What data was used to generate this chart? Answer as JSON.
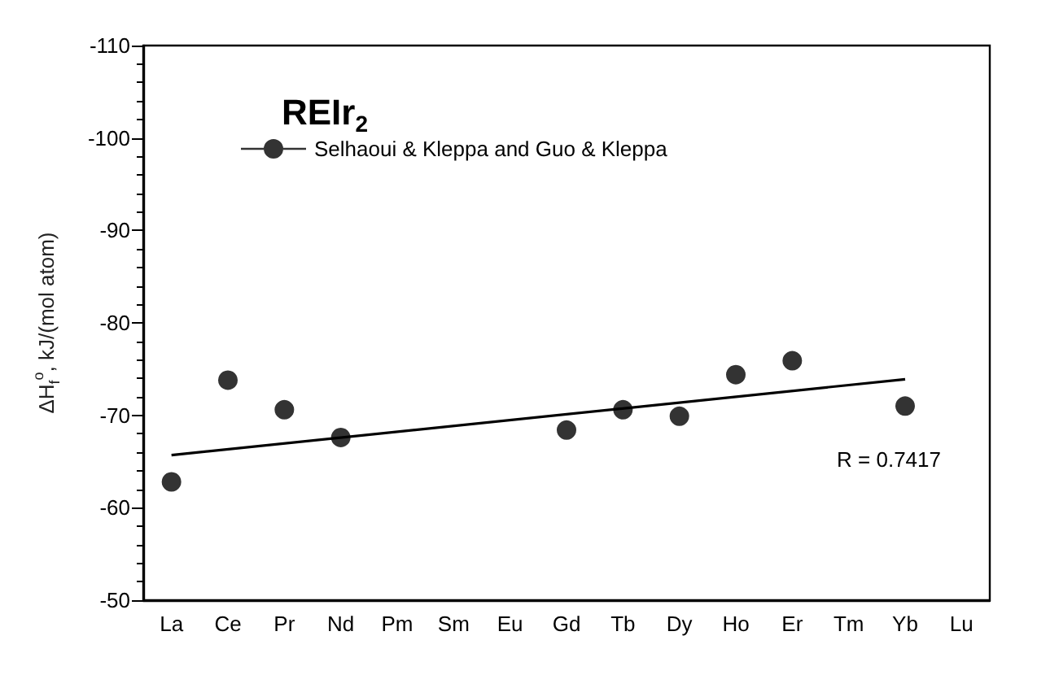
{
  "chart_data": {
    "type": "scatter",
    "title": "REIr$_{2}$",
    "ylabel": "ΔH$_{f}$$^{o}$, kJ/(mol atom)",
    "categories": [
      "La",
      "Ce",
      "Pr",
      "Nd",
      "Pm",
      "Sm",
      "Eu",
      "Gd",
      "Tb",
      "Dy",
      "Ho",
      "Er",
      "Tm",
      "Yb",
      "Lu"
    ],
    "series": [
      {
        "name": "Selhaoui & Kleppa and Guo & Kleppa",
        "color": "#000000",
        "values": [
          -62.8,
          -73.8,
          -70.6,
          -67.6,
          null,
          null,
          null,
          -68.4,
          -70.6,
          -69.9,
          -74.4,
          -75.9,
          null,
          -71.0,
          null
        ]
      },
      {
        "type": "line",
        "color": "#000000",
        "x": [
          "La",
          "Yb"
        ],
        "values": [
          -65.7,
          -73.9
        ],
        "line_style": "solid",
        "marker": "none"
      }
    ],
    "ylim": [
      -50,
      -110
    ],
    "yticks": [
      -110,
      -100,
      -90,
      -80,
      -70,
      -60,
      -50
    ],
    "annotations": [
      "R = 0.7417"
    ],
    "legend": "top left",
    "marker": "circle",
    "grid": false
  }
}
